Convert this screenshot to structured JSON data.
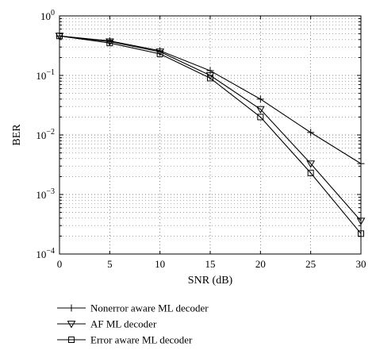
{
  "chart_data": {
    "type": "line",
    "title": "",
    "xlabel": "SNR (dB)",
    "ylabel": "BER",
    "xlim": [
      0,
      30
    ],
    "ylim": [
      0.0001,
      1
    ],
    "yscale": "log",
    "grid": true,
    "legend_position": "bottom",
    "x_ticks": [
      "0",
      "5",
      "10",
      "15",
      "20",
      "25",
      "30"
    ],
    "y_ticks": [
      {
        "base": "10",
        "exp": "0"
      },
      {
        "base": "10",
        "exp": "−1"
      },
      {
        "base": "10",
        "exp": "−2"
      },
      {
        "base": "10",
        "exp": "−3"
      },
      {
        "base": "10",
        "exp": "−4"
      }
    ],
    "x": [
      0,
      5,
      10,
      15,
      20,
      25,
      30
    ],
    "series": [
      {
        "name": "Nonerror aware ML decoder",
        "marker": "plus",
        "values": [
          0.46,
          0.38,
          0.26,
          0.12,
          0.04,
          0.011,
          0.0033
        ]
      },
      {
        "name": "AF ML decoder",
        "marker": "triangle-down",
        "values": [
          0.46,
          0.37,
          0.25,
          0.1,
          0.027,
          0.0033,
          0.00036
        ]
      },
      {
        "name": "Error aware ML decoder",
        "marker": "square",
        "values": [
          0.46,
          0.35,
          0.23,
          0.09,
          0.02,
          0.0023,
          0.00022
        ]
      }
    ]
  }
}
